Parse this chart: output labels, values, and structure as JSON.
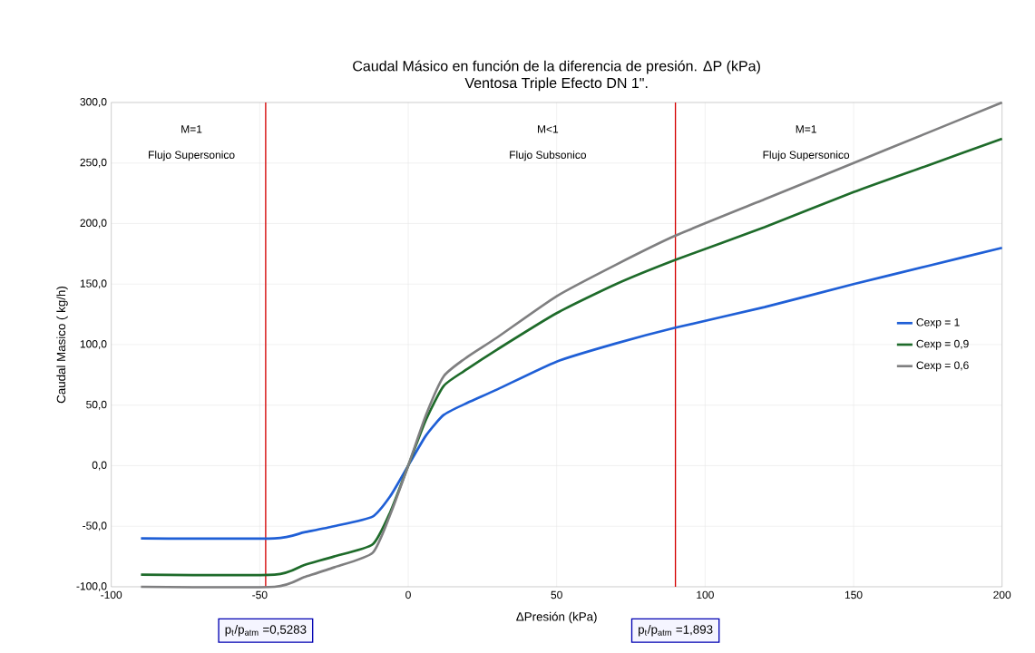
{
  "chart_data": {
    "type": "line",
    "title": "Caudal Másico en función de la diferencia de presión. ΔP (kPa)",
    "subtitle": "Ventosa Triple Efecto DN 1\".",
    "xlabel": "ΔPresión (kPa)",
    "ylabel": "Caudal Masico ( kg/h)",
    "xlim": [
      -100,
      200
    ],
    "xticks": [
      -100,
      -50,
      0,
      50,
      100,
      150,
      200
    ],
    "ylim": [
      -100,
      300
    ],
    "yticks": [
      {
        "value": -100,
        "label": "-100,0"
      },
      {
        "value": -50,
        "label": "-50,0"
      },
      {
        "value": 0,
        "label": "0,0"
      },
      {
        "value": 50,
        "label": "50,0"
      },
      {
        "value": 100,
        "label": "100,0"
      },
      {
        "value": 150,
        "label": "150,0"
      },
      {
        "value": 200,
        "label": "200,0"
      },
      {
        "value": 250,
        "label": "250,0"
      },
      {
        "value": 300,
        "label": "300,0"
      }
    ],
    "grid": true,
    "legend": "right",
    "x": [
      -90,
      -45,
      -35,
      -25,
      -12,
      -6,
      0,
      6,
      12,
      20,
      30,
      50,
      70,
      90,
      120,
      150,
      175,
      200
    ],
    "series": [
      {
        "name": "Cexp = 1",
        "color": "#1f5fd6",
        "values": [
          -60,
          -60,
          -55,
          -50,
          -42,
          -25,
          0,
          25,
          42,
          52,
          63,
          86,
          101,
          114,
          131,
          150,
          165,
          180
        ]
      },
      {
        "name": "Cexp = 0,9",
        "color": "#1e6b2a",
        "values": [
          -90,
          -90,
          -82,
          -75,
          -65,
          -38,
          0,
          38,
          66,
          80,
          96,
          126,
          150,
          170,
          197,
          226,
          248,
          270
        ]
      },
      {
        "name": "Cexp = 0,6",
        "color": "#7f7f80",
        "values": [
          -100,
          -100,
          -92,
          -84,
          -72,
          -40,
          0,
          42,
          74,
          90,
          106,
          140,
          166,
          190,
          220,
          250,
          275,
          300
        ]
      }
    ],
    "ref_lines": [
      {
        "axis": "x",
        "value": -48,
        "color": "#d40000"
      },
      {
        "axis": "x",
        "value": 90,
        "color": "#d40000"
      }
    ],
    "annotations": [
      "M=1",
      "Flujo Supersonico",
      "M<1",
      "Flujo Subsonico",
      "M=1",
      "Flujo Supersonico",
      "p$_{t}$/p$_{atm}$ =0,5283",
      "p$_{t}$/p$_{atm}$ =1,893"
    ]
  }
}
